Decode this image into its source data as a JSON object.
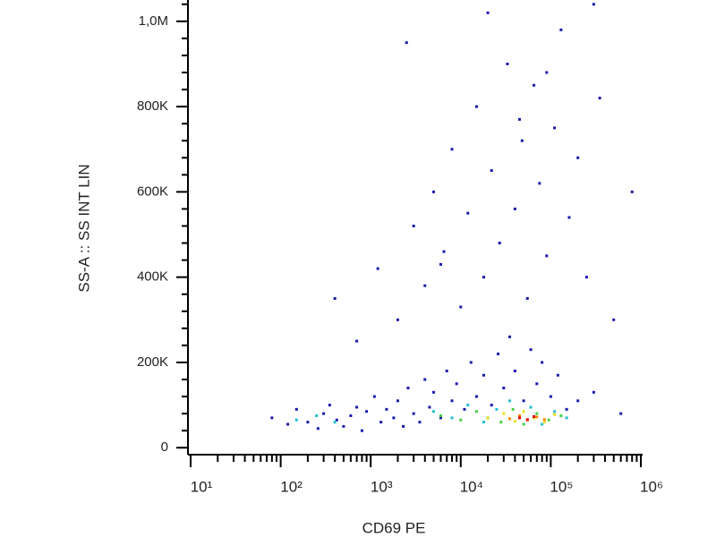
{
  "chart_data": {
    "type": "scatter",
    "x_label": "CD69 PE",
    "y_label": "SS-A :: SS INT LIN",
    "xscale": "log",
    "xlim": [
      10,
      1000000
    ],
    "ylim": [
      -10000,
      1050000
    ],
    "xticks": [
      {
        "value": 10,
        "label": "10¹"
      },
      {
        "value": 100,
        "label": "10²"
      },
      {
        "value": 1000,
        "label": "10³"
      },
      {
        "value": 10000,
        "label": "10⁴"
      },
      {
        "value": 100000,
        "label": "10⁵"
      },
      {
        "value": 1000000,
        "label": "10⁶"
      }
    ],
    "xminorticks": [
      20,
      30,
      40,
      50,
      60,
      70,
      80,
      90,
      200,
      300,
      400,
      500,
      600,
      700,
      800,
      900,
      2000,
      3000,
      4000,
      5000,
      6000,
      7000,
      8000,
      9000,
      20000,
      30000,
      40000,
      50000,
      60000,
      70000,
      80000,
      90000,
      200000,
      300000,
      400000,
      500000,
      600000,
      700000,
      800000,
      900000
    ],
    "yticks": [
      0,
      {
        "value": 200000,
        "label": "200K"
      },
      {
        "value": 400000,
        "label": "400K"
      },
      {
        "value": 600000,
        "label": "600K"
      },
      {
        "value": 800000,
        "label": "800K"
      },
      {
        "value": 1000000,
        "label": "1,0M"
      }
    ],
    "yminorticks": [
      40000,
      80000,
      120000,
      160000,
      240000,
      280000,
      320000,
      360000,
      440000,
      480000,
      520000,
      560000,
      640000,
      680000,
      720000,
      760000,
      840000,
      880000,
      920000,
      960000,
      1040000
    ],
    "series": [
      {
        "color": "#1a1ab0",
        "x": [
          80,
          120,
          150,
          200,
          260,
          300,
          350,
          420,
          500,
          600,
          700,
          800,
          900,
          1100,
          1300,
          1500,
          1800,
          2000,
          2300,
          2600,
          3000,
          3500,
          4000,
          4500,
          5000,
          6000,
          7000,
          8000,
          9000,
          11000,
          13000,
          15000,
          18000,
          22000,
          26000,
          30000,
          35000,
          40000,
          50000,
          60000,
          70000,
          80000,
          100000,
          120000,
          150000,
          200000,
          300000,
          600000,
          400,
          700,
          1200,
          2000,
          3000,
          4000,
          5000,
          6500,
          8000,
          10000,
          12000,
          15000,
          18000,
          22000,
          27000,
          33000,
          40000,
          48000,
          55000,
          65000,
          75000,
          90000,
          110000,
          130000,
          160000,
          200000,
          250000,
          350000,
          500000,
          800000,
          2500,
          6000,
          20000,
          45000,
          90000,
          300000
        ],
        "values": [
          70000,
          55000,
          90000,
          60000,
          45000,
          80000,
          100000,
          65000,
          50000,
          75000,
          95000,
          40000,
          85000,
          120000,
          60000,
          90000,
          70000,
          110000,
          50000,
          140000,
          80000,
          60000,
          160000,
          95000,
          130000,
          70000,
          180000,
          110000,
          150000,
          90000,
          200000,
          120000,
          170000,
          100000,
          220000,
          140000,
          260000,
          180000,
          110000,
          230000,
          150000,
          200000,
          120000,
          170000,
          90000,
          110000,
          130000,
          80000,
          350000,
          250000,
          420000,
          300000,
          520000,
          380000,
          600000,
          460000,
          700000,
          330000,
          550000,
          800000,
          400000,
          650000,
          480000,
          900000,
          560000,
          720000,
          350000,
          850000,
          620000,
          450000,
          750000,
          980000,
          540000,
          680000,
          400000,
          820000,
          300000,
          600000,
          950000,
          430000,
          1020000,
          770000,
          880000,
          1040000
        ]
      },
      {
        "color": "#20c0d0",
        "x": [
          150,
          250,
          400,
          5000,
          8000,
          12000,
          18000,
          25000,
          35000,
          45000,
          60000,
          80000,
          110000,
          150000
        ],
        "values": [
          65000,
          75000,
          60000,
          85000,
          70000,
          100000,
          60000,
          90000,
          110000,
          75000,
          95000,
          55000,
          85000,
          70000
        ]
      },
      {
        "color": "#40d040",
        "x": [
          6000,
          10000,
          15000,
          20000,
          28000,
          38000,
          50000,
          70000,
          95000,
          130000
        ],
        "values": [
          75000,
          65000,
          85000,
          70000,
          60000,
          90000,
          55000,
          80000,
          65000,
          75000
        ]
      },
      {
        "color": "#e8e020",
        "x": [
          20000,
          30000,
          40000,
          50000,
          65000,
          85000,
          110000
        ],
        "values": [
          70000,
          80000,
          62000,
          85000,
          70000,
          60000,
          78000
        ]
      },
      {
        "color": "#ff8000",
        "x": [
          35000,
          45000,
          55000,
          70000,
          85000
        ],
        "values": [
          68000,
          75000,
          65000,
          72000,
          66000
        ]
      },
      {
        "color": "#e00000",
        "x": [
          45000,
          55000,
          65000
        ],
        "values": [
          70000,
          66000,
          73000
        ]
      }
    ]
  }
}
